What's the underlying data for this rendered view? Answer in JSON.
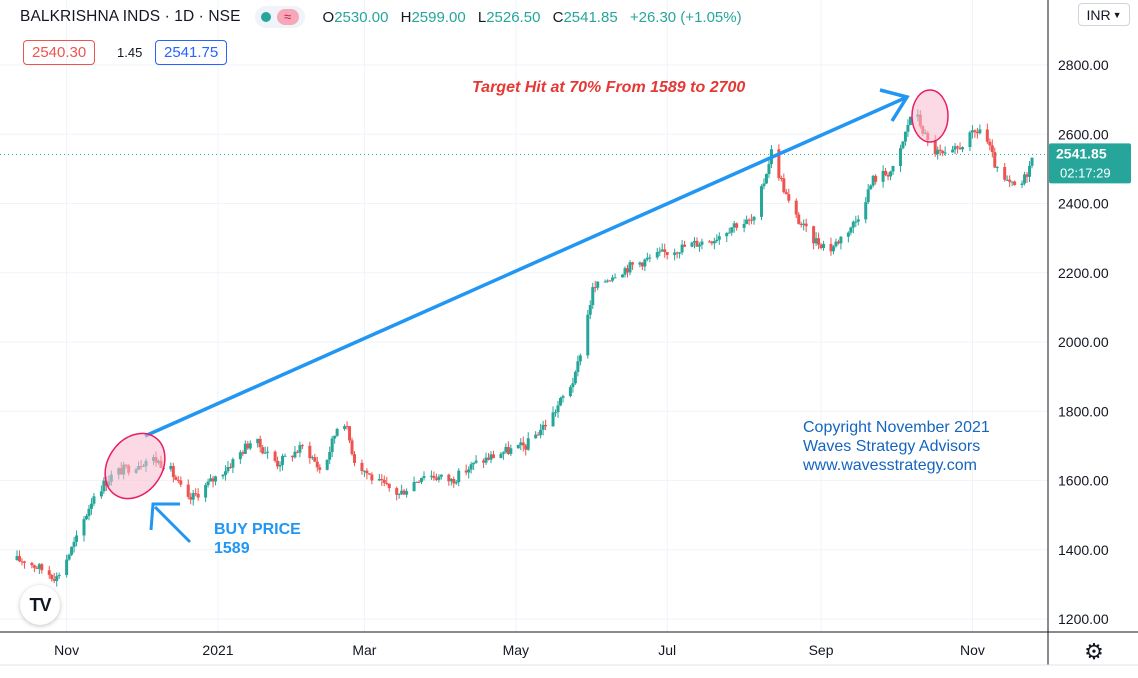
{
  "header": {
    "symbol": "BALKRISHNA INDS · 1D · NSE",
    "ohlc": [
      {
        "label": "O",
        "value": "2530.00"
      },
      {
        "label": "H",
        "value": "2599.00"
      },
      {
        "label": "L",
        "value": "2526.50"
      },
      {
        "label": "C",
        "value": "2541.85"
      }
    ],
    "change": "+26.30 (+1.05%)",
    "sell_price": "2540.30",
    "spread": "1.45",
    "buy_price": "2541.75",
    "currency": "INR"
  },
  "icons": {
    "status": "green-dot-icon",
    "indicator": "wave-icon",
    "logo": "TV",
    "settings": "⚙"
  },
  "colors": {
    "up": "#26a69a",
    "down": "#ef5350",
    "trend_arrow": "#2196f3",
    "annotation_red": "#e53935",
    "highlight_fill": "#f8bbd0",
    "highlight_stroke": "#e91e63",
    "last_price_line": "#26a69a",
    "copyright_text": "#1565c0"
  },
  "chart_data": {
    "type": "candlestick",
    "price_label": "2541.85",
    "countdown": "02:17:29",
    "y_axis": {
      "ticks": [
        "1200.00",
        "1400.00",
        "1600.00",
        "1800.00",
        "2000.00",
        "2200.00",
        "2400.00",
        "2600.00",
        "2800.00"
      ],
      "range": [
        1150,
        2900
      ]
    },
    "x_axis": {
      "ticks": [
        "Nov",
        "2021",
        "Mar",
        "May",
        "Jul",
        "Sep",
        "Nov"
      ]
    },
    "series": [
      {
        "date": "2020-10-15",
        "close": 1370
      },
      {
        "date": "2020-10-28",
        "close": 1320
      },
      {
        "date": "2020-11-05",
        "close": 1430
      },
      {
        "date": "2020-11-12",
        "close": 1560
      },
      {
        "date": "2020-11-20",
        "close": 1620
      },
      {
        "date": "2020-11-27",
        "close": 1640
      },
      {
        "date": "2020-12-05",
        "close": 1665
      },
      {
        "date": "2020-12-12",
        "close": 1640
      },
      {
        "date": "2020-12-20",
        "close": 1540
      },
      {
        "date": "2021-01-05",
        "close": 1640
      },
      {
        "date": "2021-01-15",
        "close": 1720
      },
      {
        "date": "2021-01-25",
        "close": 1650
      },
      {
        "date": "2021-02-05",
        "close": 1700
      },
      {
        "date": "2021-02-12",
        "close": 1620
      },
      {
        "date": "2021-02-20",
        "close": 1800
      },
      {
        "date": "2021-02-25",
        "close": 1660
      },
      {
        "date": "2021-03-05",
        "close": 1600
      },
      {
        "date": "2021-03-15",
        "close": 1560
      },
      {
        "date": "2021-03-25",
        "close": 1620
      },
      {
        "date": "2021-04-05",
        "close": 1600
      },
      {
        "date": "2021-04-15",
        "close": 1650
      },
      {
        "date": "2021-04-25",
        "close": 1680
      },
      {
        "date": "2021-05-05",
        "close": 1700
      },
      {
        "date": "2021-05-15",
        "close": 1780
      },
      {
        "date": "2021-05-25",
        "close": 1900
      },
      {
        "date": "2021-06-01",
        "close": 2150
      },
      {
        "date": "2021-06-10",
        "close": 2200
      },
      {
        "date": "2021-06-20",
        "close": 2230
      },
      {
        "date": "2021-07-01",
        "close": 2260
      },
      {
        "date": "2021-07-10",
        "close": 2280
      },
      {
        "date": "2021-07-20",
        "close": 2300
      },
      {
        "date": "2021-07-28",
        "close": 2340
      },
      {
        "date": "2021-08-05",
        "close": 2350
      },
      {
        "date": "2021-08-12",
        "close": 2550
      },
      {
        "date": "2021-08-20",
        "close": 2380
      },
      {
        "date": "2021-08-28",
        "close": 2300
      },
      {
        "date": "2021-09-05",
        "close": 2270
      },
      {
        "date": "2021-09-15",
        "close": 2350
      },
      {
        "date": "2021-09-22",
        "close": 2470
      },
      {
        "date": "2021-10-01",
        "close": 2500
      },
      {
        "date": "2021-10-08",
        "close": 2680
      },
      {
        "date": "2021-10-15",
        "close": 2560
      },
      {
        "date": "2021-10-22",
        "close": 2530
      },
      {
        "date": "2021-10-29",
        "close": 2580
      },
      {
        "date": "2021-11-05",
        "close": 2620
      },
      {
        "date": "2021-11-12",
        "close": 2470
      },
      {
        "date": "2021-11-20",
        "close": 2440
      },
      {
        "date": "2021-11-26",
        "close": 2541.85
      }
    ],
    "annotations": {
      "target_text": "Target Hit at 70% From 1589 to 2700",
      "buy_text_1": "BUY PRICE",
      "buy_text_2": "1589",
      "copyright_1": "Copyright November 2021",
      "copyright_2": "Waves Strategy Advisors",
      "copyright_3": "www.wavesstrategy.com"
    }
  }
}
